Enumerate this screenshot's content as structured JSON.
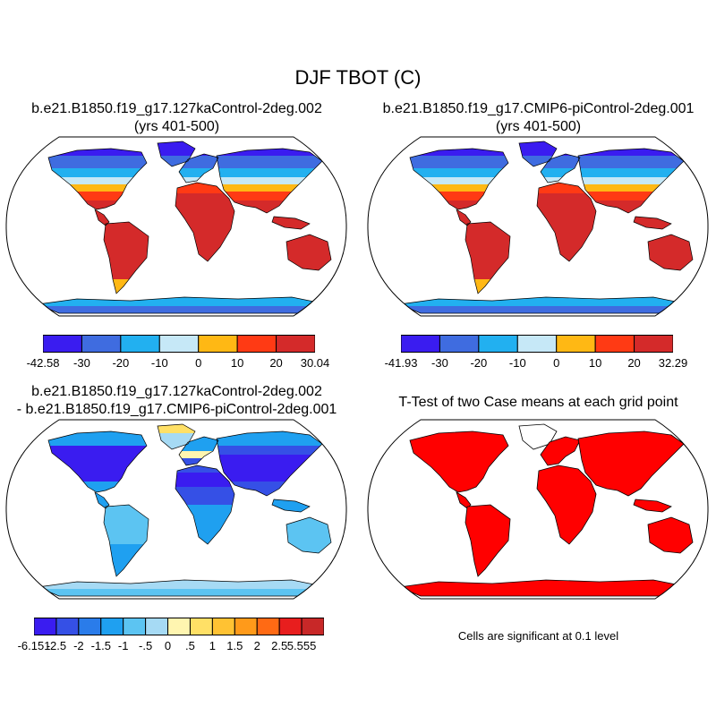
{
  "title": "DJF TBOT (C)",
  "panels": [
    {
      "title_line1": "b.e21.B1850.f19_g17.127kaControl-2deg.002",
      "title_line2": "(yrs 401-500)",
      "colorbar": {
        "colors": [
          "#3a1cf0",
          "#3f6ce0",
          "#22b0f0",
          "#c6e8f7",
          "#ffb814",
          "#ff3a14",
          "#d42a2a"
        ],
        "labels": [
          "-42.58",
          "-30",
          "-20",
          "-10",
          "0",
          "10",
          "20",
          "30.04"
        ]
      }
    },
    {
      "title_line1": "b.e21.B1850.f19_g17.CMIP6-piControl-2deg.001",
      "title_line2": "(yrs 401-500)",
      "colorbar": {
        "colors": [
          "#3a1cf0",
          "#3f6ce0",
          "#22b0f0",
          "#c6e8f7",
          "#ffb814",
          "#ff3a14",
          "#d42a2a"
        ],
        "labels": [
          "-41.93",
          "-30",
          "-20",
          "-10",
          "0",
          "10",
          "20",
          "32.29"
        ]
      }
    },
    {
      "title_line1": "b.e21.B1850.f19_g17.127kaControl-2deg.002",
      "title_line2": "- b.e21.B1850.f19_g17.CMIP6-piControl-2deg.001",
      "colorbar": {
        "colors": [
          "#3a1cf0",
          "#3550e6",
          "#2a7cea",
          "#1fa0f0",
          "#5cc4f2",
          "#a6daf4",
          "#fff5b0",
          "#ffe066",
          "#ffc233",
          "#ff9a1a",
          "#ff6a14",
          "#e81e1e",
          "#c82828"
        ],
        "labels": [
          "-6.151",
          "-2.5",
          "-2",
          "-1.5",
          "-1",
          "-.5",
          "0",
          ".5",
          "1",
          "1.5",
          "2",
          "2.5",
          "5.555"
        ]
      }
    },
    {
      "title_line1": "T-Test of two Case means at each grid point",
      "title_line2": "",
      "note": "Cells are significant at 0.1 level",
      "fill": "#ff0000"
    }
  ]
}
